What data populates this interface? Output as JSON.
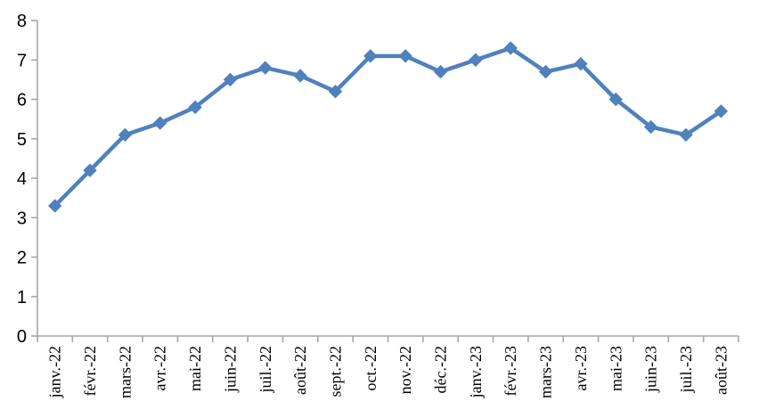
{
  "chart_data": {
    "type": "line",
    "title": "",
    "xlabel": "",
    "ylabel": "",
    "categories": [
      "janv.-22",
      "févr.-22",
      "mars-22",
      "avr.-22",
      "mai-22",
      "juin-22",
      "juil.-22",
      "août-22",
      "sept.-22",
      "oct.-22",
      "nov.-22",
      "déc.-22",
      "janv.-23",
      "févr.-23",
      "mars-23",
      "avr.-23",
      "mai-23",
      "juin-23",
      "juil.-23",
      "août-23"
    ],
    "series": [
      {
        "name": "",
        "values": [
          3.3,
          4.2,
          5.1,
          5.4,
          5.8,
          6.5,
          6.8,
          6.6,
          6.2,
          7.1,
          7.1,
          6.7,
          7.0,
          7.3,
          6.7,
          6.9,
          6.0,
          5.3,
          5.1,
          5.7
        ]
      }
    ],
    "ylim": [
      0,
      8
    ],
    "ytick_step": 1,
    "yticks": [
      "0",
      "1",
      "2",
      "3",
      "4",
      "5",
      "6",
      "7",
      "8"
    ],
    "grid": "off",
    "legend": "none",
    "marker": "diamond",
    "colors": {
      "series_line": "#4F81BD",
      "series_marker": "#4F81BD",
      "axis": "#A6A6A6",
      "tick": "#A6A6A6",
      "label_text": "#000000",
      "background": "#FFFFFF"
    }
  }
}
